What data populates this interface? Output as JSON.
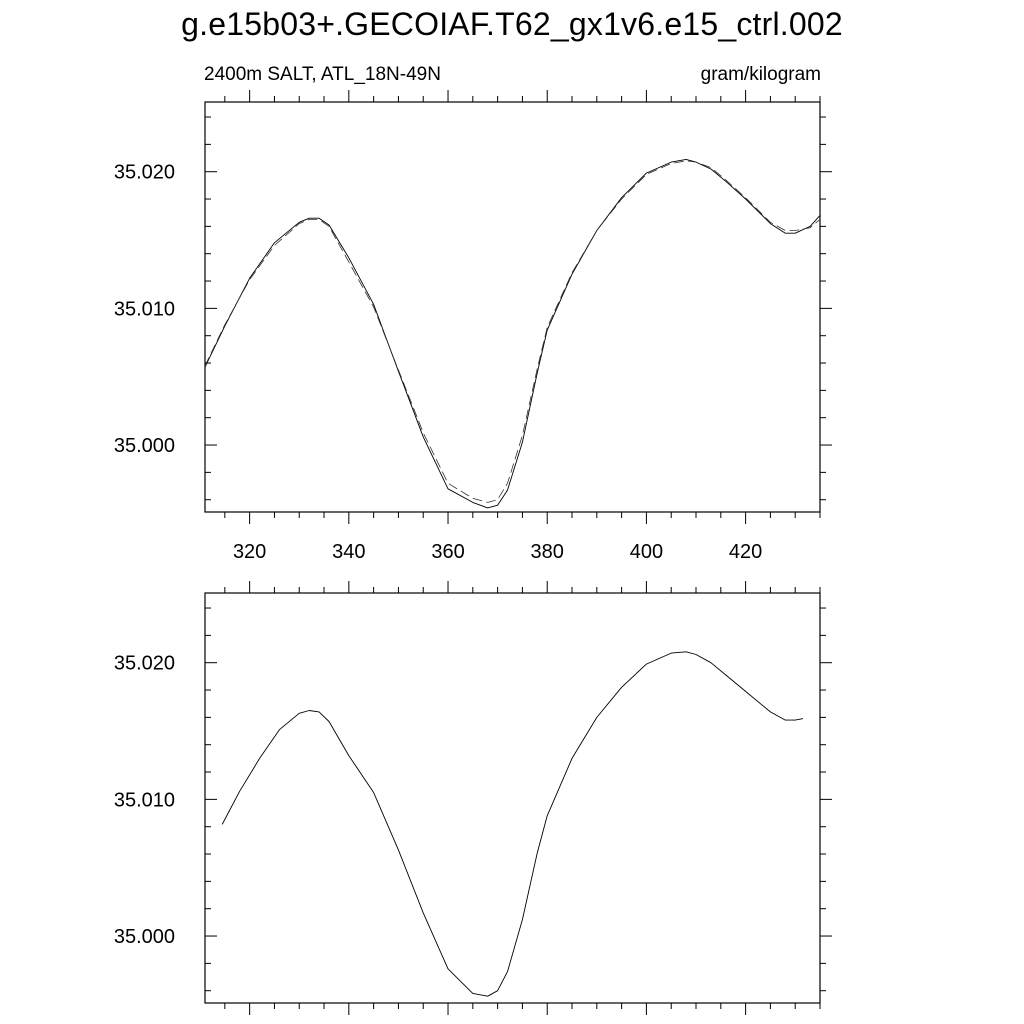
{
  "title": "g.e15b03+.GECOIAF.T62_gx1v6.e15_ctrl.002",
  "subtitle_left": "2400m SALT, ATL_18N-49N",
  "subtitle_right": "gram/kilogram",
  "chart_data": [
    {
      "type": "line",
      "title": "",
      "xlabel": "",
      "ylabel": "",
      "xlim": [
        311,
        435
      ],
      "ylim": [
        34.9951,
        35.0251
      ],
      "xticks": [
        320,
        340,
        360,
        380,
        400,
        420
      ],
      "xtick_labels": [
        "320",
        "340",
        "360",
        "380",
        "400",
        "420"
      ],
      "yticks": [
        35.0,
        35.01,
        35.02
      ],
      "ytick_labels": [
        "35.000",
        "35.010",
        "35.020"
      ],
      "grid": false,
      "legend": "none",
      "series": [
        {
          "style": "solid",
          "x": [
            311,
            315,
            320,
            325,
            330,
            332,
            334,
            336,
            340,
            345,
            350,
            355,
            360,
            365,
            368,
            370,
            372,
            375,
            378,
            380,
            385,
            390,
            395,
            400,
            405,
            408,
            410,
            413,
            416,
            420,
            425,
            428,
            430,
            433,
            435
          ],
          "y": [
            35.0057,
            35.0087,
            35.0122,
            35.0148,
            35.0163,
            35.0166,
            35.0166,
            35.0161,
            35.0137,
            35.0103,
            35.0054,
            35.0006,
            34.9968,
            34.9958,
            34.9954,
            34.9956,
            34.9967,
            35.0002,
            35.0053,
            35.0084,
            35.0125,
            35.0157,
            35.0181,
            35.0199,
            35.0207,
            35.0209,
            35.0207,
            35.0202,
            35.0193,
            35.018,
            35.0162,
            35.0155,
            35.0155,
            35.016,
            35.0168
          ]
        },
        {
          "style": "dashed",
          "x": [
            311,
            315,
            320,
            325,
            330,
            332,
            334,
            336,
            340,
            345,
            350,
            355,
            360,
            365,
            368,
            370,
            372,
            375,
            378,
            380,
            385,
            390,
            395,
            400,
            405,
            408,
            410,
            413,
            416,
            420,
            425,
            428,
            430,
            433,
            435
          ],
          "y": [
            35.0058,
            35.0088,
            35.0121,
            35.0146,
            35.0162,
            35.0165,
            35.0165,
            35.016,
            35.0134,
            35.0101,
            35.0055,
            35.0009,
            34.9972,
            34.9961,
            34.9958,
            34.996,
            34.9972,
            35.0007,
            35.0056,
            35.0086,
            35.0126,
            35.0157,
            35.018,
            35.0198,
            35.0206,
            35.0208,
            35.0207,
            35.0203,
            35.0194,
            35.0181,
            35.0163,
            35.0157,
            35.0157,
            35.0159,
            35.0165
          ]
        }
      ]
    },
    {
      "type": "line",
      "title": "",
      "xlabel": "",
      "ylabel": "",
      "xlim": [
        311,
        435
      ],
      "ylim": [
        34.9951,
        35.0251
      ],
      "xticks": [
        320,
        340,
        360,
        380,
        400,
        420
      ],
      "xtick_labels": [],
      "yticks": [
        35.0,
        35.01,
        35.02
      ],
      "ytick_labels": [
        "35.000",
        "35.010",
        "35.020"
      ],
      "grid": false,
      "legend": "none",
      "series": [
        {
          "style": "solid",
          "x": [
            314.5,
            318,
            322,
            326,
            330,
            332,
            334,
            336,
            340,
            345,
            350,
            355,
            360,
            365,
            368,
            370,
            372,
            375,
            378,
            380,
            385,
            390,
            395,
            400,
            405,
            408,
            410,
            413,
            416,
            420,
            425,
            428,
            430,
            431.5
          ],
          "y": [
            35.0082,
            35.0106,
            35.013,
            35.0151,
            35.0163,
            35.0165,
            35.0164,
            35.0157,
            35.0132,
            35.0105,
            35.0063,
            35.0017,
            34.9976,
            34.9958,
            34.9956,
            34.996,
            34.9974,
            35.0012,
            35.0061,
            35.0088,
            35.013,
            35.016,
            35.0182,
            35.0199,
            35.0207,
            35.0208,
            35.0206,
            35.02,
            35.0191,
            35.0179,
            35.0164,
            35.0158,
            35.0158,
            35.0159
          ]
        }
      ]
    }
  ]
}
